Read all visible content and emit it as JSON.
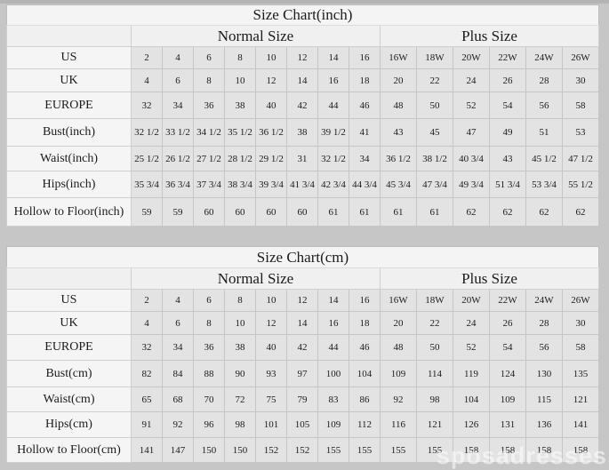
{
  "page": {
    "background": "#c6c6c6",
    "cell_color": "#e3e3e3",
    "header_color": "#f4f4f4",
    "watermark_text": "sposadresses"
  },
  "chart_data": [
    {
      "type": "table",
      "title": "Size Chart(inch)",
      "column_groups": [
        {
          "label": "Normal Size",
          "span": 8
        },
        {
          "label": "Plus Size",
          "span": 6
        }
      ],
      "columns": [
        "2",
        "4",
        "6",
        "8",
        "10",
        "12",
        "14",
        "16",
        "16W",
        "18W",
        "20W",
        "22W",
        "24W",
        "26W"
      ],
      "rows": [
        {
          "label": "US",
          "values": [
            "2",
            "4",
            "6",
            "8",
            "10",
            "12",
            "14",
            "16",
            "16W",
            "18W",
            "20W",
            "22W",
            "24W",
            "26W"
          ]
        },
        {
          "label": "UK",
          "values": [
            "4",
            "6",
            "8",
            "10",
            "12",
            "14",
            "16",
            "18",
            "20",
            "22",
            "24",
            "26",
            "28",
            "30"
          ]
        },
        {
          "label": "EUROPE",
          "values": [
            "32",
            "34",
            "36",
            "38",
            "40",
            "42",
            "44",
            "46",
            "48",
            "50",
            "52",
            "54",
            "56",
            "58"
          ]
        },
        {
          "label": "Bust(inch)",
          "values": [
            "32 1/2",
            "33 1/2",
            "34 1/2",
            "35 1/2",
            "36 1/2",
            "38",
            "39 1/2",
            "41",
            "43",
            "45",
            "47",
            "49",
            "51",
            "53"
          ]
        },
        {
          "label": "Waist(inch)",
          "values": [
            "25 1/2",
            "26 1/2",
            "27 1/2",
            "28 1/2",
            "29 1/2",
            "31",
            "32 1/2",
            "34",
            "36 1/2",
            "38 1/2",
            "40 3/4",
            "43",
            "45 1/2",
            "47 1/2"
          ]
        },
        {
          "label": "Hips(inch)",
          "values": [
            "35 3/4",
            "36 3/4",
            "37 3/4",
            "38 3/4",
            "39 3/4",
            "41 3/4",
            "42 3/4",
            "44 3/4",
            "45 3/4",
            "47 3/4",
            "49 3/4",
            "51 3/4",
            "53 3/4",
            "55 1/2"
          ]
        },
        {
          "label": "Hollow to Floor(inch)",
          "values": [
            "59",
            "59",
            "60",
            "60",
            "60",
            "60",
            "61",
            "61",
            "61",
            "61",
            "62",
            "62",
            "62",
            "62"
          ]
        }
      ]
    },
    {
      "type": "table",
      "title": "Size Chart(cm)",
      "column_groups": [
        {
          "label": "Normal Size",
          "span": 8
        },
        {
          "label": "Plus Size",
          "span": 6
        }
      ],
      "columns": [
        "2",
        "4",
        "6",
        "8",
        "10",
        "12",
        "14",
        "16",
        "16W",
        "18W",
        "20W",
        "22W",
        "24W",
        "26W"
      ],
      "rows": [
        {
          "label": "US",
          "values": [
            "2",
            "4",
            "6",
            "8",
            "10",
            "12",
            "14",
            "16",
            "16W",
            "18W",
            "20W",
            "22W",
            "24W",
            "26W"
          ]
        },
        {
          "label": "UK",
          "values": [
            "4",
            "6",
            "8",
            "10",
            "12",
            "14",
            "16",
            "18",
            "20",
            "22",
            "24",
            "26",
            "28",
            "30"
          ]
        },
        {
          "label": "EUROPE",
          "values": [
            "32",
            "34",
            "36",
            "38",
            "40",
            "42",
            "44",
            "46",
            "48",
            "50",
            "52",
            "54",
            "56",
            "58"
          ]
        },
        {
          "label": "Bust(cm)",
          "values": [
            "82",
            "84",
            "88",
            "90",
            "93",
            "97",
            "100",
            "104",
            "109",
            "114",
            "119",
            "124",
            "130",
            "135"
          ]
        },
        {
          "label": "Waist(cm)",
          "values": [
            "65",
            "68",
            "70",
            "72",
            "75",
            "79",
            "83",
            "86",
            "92",
            "98",
            "104",
            "109",
            "115",
            "121"
          ]
        },
        {
          "label": "Hips(cm)",
          "values": [
            "91",
            "92",
            "96",
            "98",
            "101",
            "105",
            "109",
            "112",
            "116",
            "121",
            "126",
            "131",
            "136",
            "141"
          ]
        },
        {
          "label": "Hollow to Floor(cm)",
          "values": [
            "141",
            "147",
            "150",
            "150",
            "152",
            "152",
            "155",
            "155",
            "155",
            "155",
            "158",
            "158",
            "158",
            "158"
          ]
        }
      ]
    }
  ]
}
